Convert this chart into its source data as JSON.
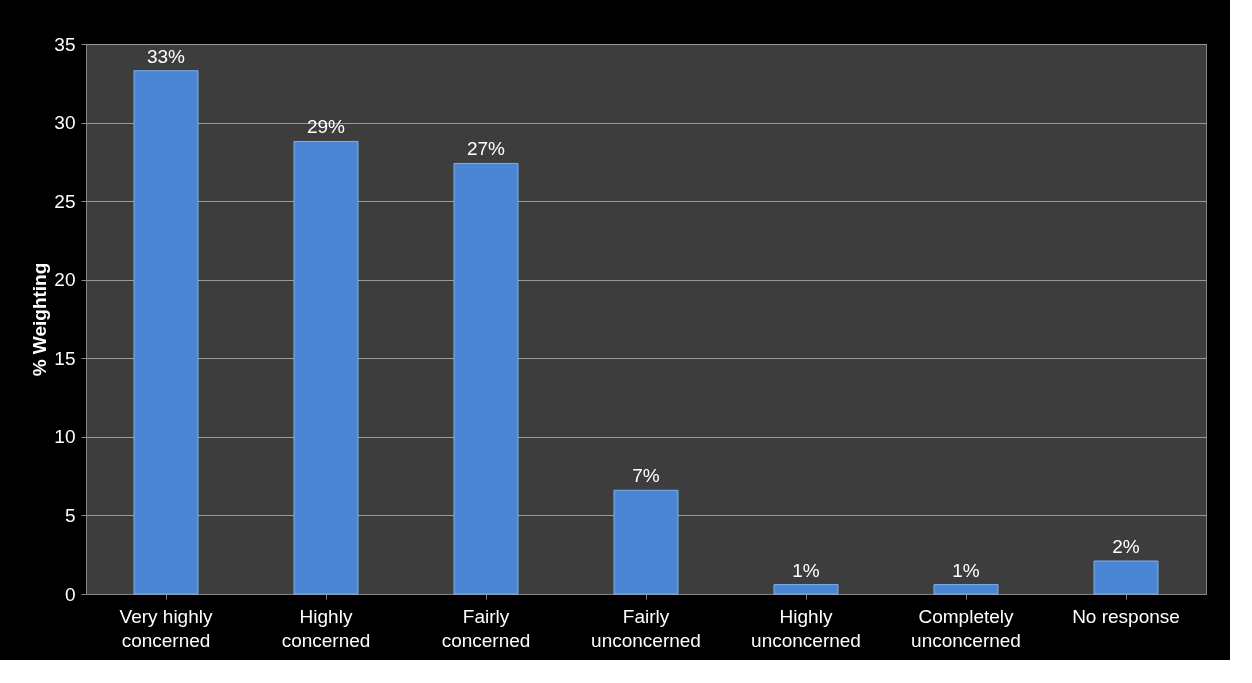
{
  "chart_data": {
    "type": "bar",
    "ylabel": "% Weighting",
    "categories": [
      "Very highly\nconcerned",
      "Highly\nconcerned",
      "Fairly\nconcerned",
      "Fairly\nunconcerned",
      "Highly\nunconcerned",
      "Completely\nunconcerned",
      "No response"
    ],
    "values": [
      33.3,
      28.8,
      27.4,
      6.6,
      0.6,
      0.6,
      2.1
    ],
    "value_labels": [
      "33%",
      "29%",
      "27%",
      "7%",
      "1%",
      "1%",
      "2%"
    ],
    "color": "#4a86d4",
    "ylim": [
      0,
      35
    ],
    "yticks": [
      0,
      5,
      10,
      15,
      20,
      25,
      30,
      35
    ],
    "grid": "y"
  }
}
